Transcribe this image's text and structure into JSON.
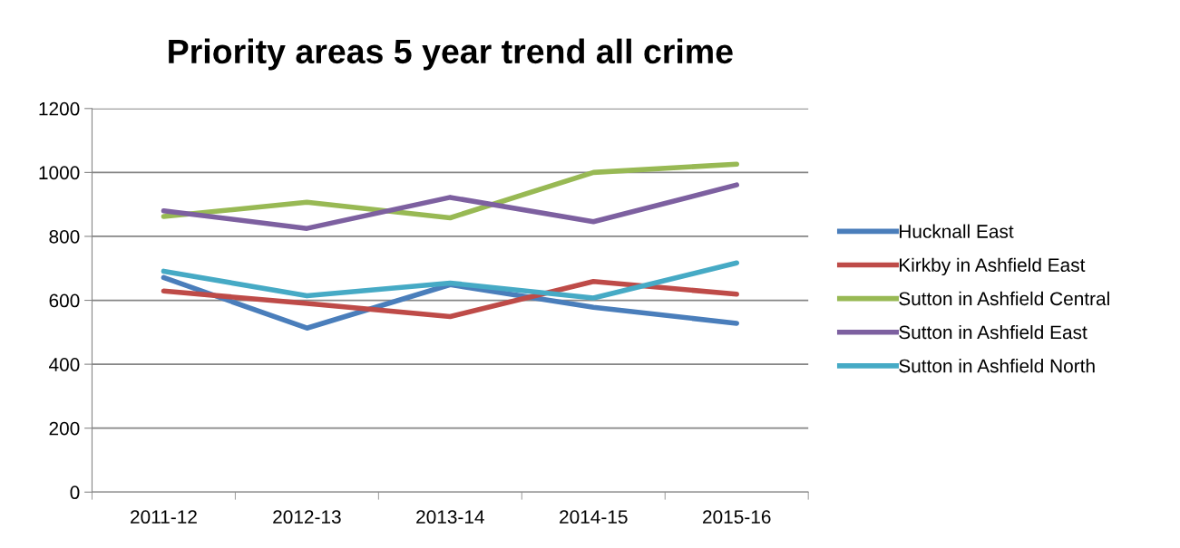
{
  "chart_data": {
    "type": "line",
    "title": "Priority areas 5 year trend all crime",
    "categories": [
      "2011-12",
      "2012-13",
      "2013-14",
      "2014-15",
      "2015-16"
    ],
    "series": [
      {
        "name": "Hucknall East",
        "color": "#4a7ebb",
        "values": [
          671,
          513,
          649,
          578,
          528
        ]
      },
      {
        "name": "Kirkby in Ashfield East",
        "color": "#be4b48",
        "values": [
          629,
          590,
          549,
          659,
          619
        ]
      },
      {
        "name": "Sutton in Ashfield Central",
        "color": "#98b954",
        "values": [
          862,
          907,
          858,
          1000,
          1026
        ]
      },
      {
        "name": "Sutton in Ashfield East",
        "color": "#7d60a0",
        "values": [
          880,
          825,
          922,
          846,
          961
        ]
      },
      {
        "name": "Sutton in Ashfield North",
        "color": "#46aac5",
        "values": [
          691,
          614,
          654,
          607,
          717
        ]
      }
    ],
    "ylim": [
      0,
      1200
    ],
    "yticks": [
      0,
      200,
      400,
      600,
      800,
      1000,
      1200
    ],
    "grid": "y",
    "legend": "right",
    "marker": "none",
    "line_style": "solid"
  }
}
